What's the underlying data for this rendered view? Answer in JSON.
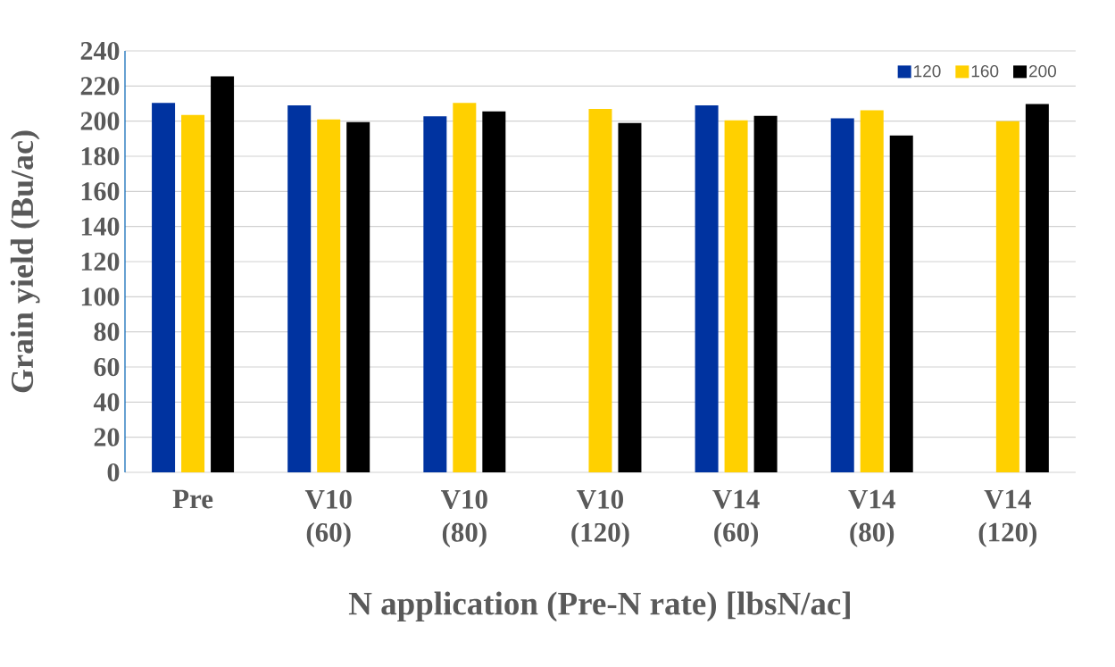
{
  "chart_data": {
    "type": "bar",
    "xlabel": "N application (Pre-N rate) [lbsN/ac]",
    "ylabel": "Grain yield (Bu/ac)",
    "categories": [
      "Pre",
      "V10 (60)",
      "V10 (80)",
      "V10 (120)",
      "V14 (60)",
      "V14 (80)",
      "V14 (120)"
    ],
    "series": [
      {
        "name": "120",
        "color": "#0033a0",
        "values": [
          210.4,
          209,
          202.7,
          null,
          209,
          201.6,
          null
        ]
      },
      {
        "name": "160",
        "color": "#ffd000",
        "values": [
          203.5,
          201,
          210.4,
          206.9,
          200.4,
          206.2,
          200
        ]
      },
      {
        "name": "200",
        "color": "#000000",
        "values": [
          225.5,
          199.5,
          205.5,
          199,
          203,
          191.8,
          209.8
        ]
      }
    ],
    "ylim": [
      0,
      240
    ],
    "yticks": [
      0,
      20,
      40,
      60,
      80,
      100,
      120,
      140,
      160,
      180,
      200,
      220,
      240
    ],
    "grid": "y",
    "legend": "top right"
  }
}
